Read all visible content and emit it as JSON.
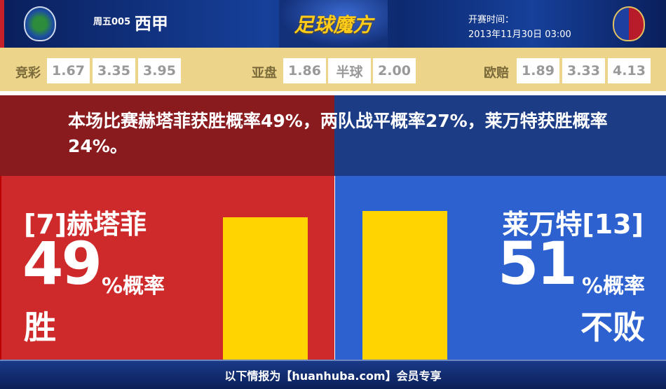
{
  "header": {
    "match_no": "周五005",
    "league": "西甲",
    "brand": "足球魔方",
    "kickoff_label": "开赛时间：",
    "kickoff_time": "2013年11月30日 03:00",
    "home_logo": "getafe-crest",
    "away_logo": "levante-crest"
  },
  "odds": {
    "jingcai": {
      "label": "竞彩",
      "values": [
        "1.67",
        "3.35",
        "3.95"
      ]
    },
    "yapan": {
      "label": "亚盘",
      "values": [
        "1.86",
        "半球",
        "2.00"
      ]
    },
    "oupei": {
      "label": "欧赔",
      "values": [
        "1.89",
        "3.33",
        "4.13"
      ]
    }
  },
  "summary": "本场比赛赫塔菲获胜概率49%，两队战平概率27%，莱万特获胜概率24%。",
  "home": {
    "name": "[7]赫塔菲",
    "percent": "49",
    "percent_suffix": "%概率",
    "result": "胜",
    "bar_value": 49,
    "color": "#cf2a2b"
  },
  "away": {
    "name": "莱万特[13]",
    "percent": "51",
    "percent_suffix": "%概率",
    "result": "不败",
    "bar_value": 51,
    "color": "#2c61cf"
  },
  "bar_color": "#ffd400",
  "footer": "以下情报为【huanhuba.com】会员专享"
}
